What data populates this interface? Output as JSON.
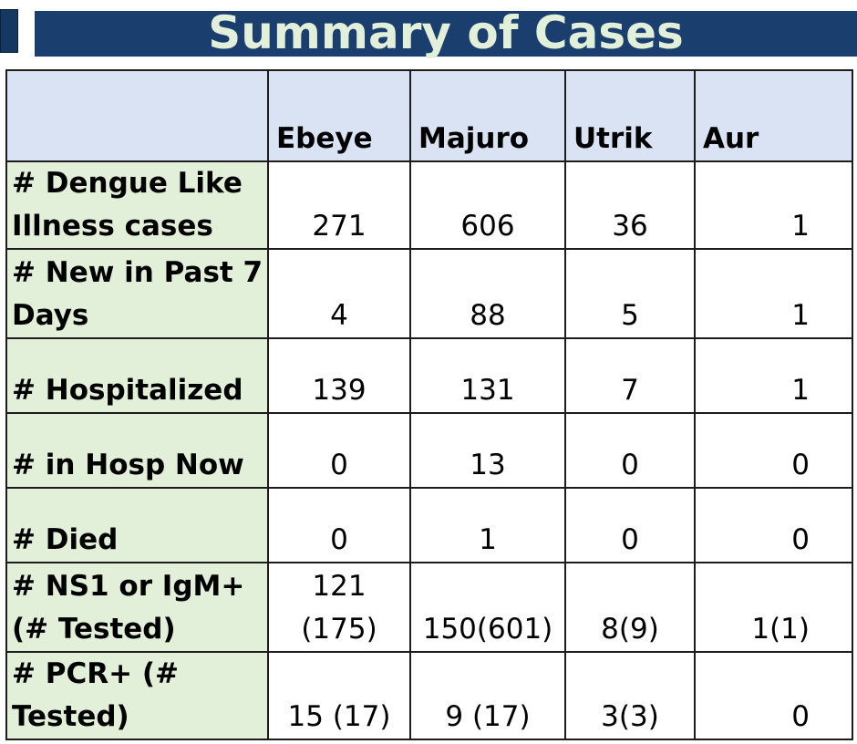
{
  "title": "Summary of Cases",
  "table": {
    "headers": [
      "",
      "Ebeye",
      "Majuro",
      "Utrik",
      "Aur"
    ],
    "rows": [
      {
        "label": "# Dengue Like Illness cases",
        "values": [
          "271",
          "606",
          "36",
          "1"
        ]
      },
      {
        "label": "# New in Past 7 Days",
        "values": [
          "4",
          "88",
          "5",
          "1"
        ]
      },
      {
        "label": "# Hospitalized",
        "values": [
          "139",
          "131",
          "7",
          "1"
        ]
      },
      {
        "label": "# in Hosp Now",
        "values": [
          "0",
          "13",
          "0",
          "0"
        ]
      },
      {
        "label": "# Died",
        "values": [
          "0",
          "1",
          "0",
          "0"
        ]
      },
      {
        "label": "# NS1 or IgM+ (# Tested)",
        "values": [
          "121 (175)",
          "150(601)",
          "8(9)",
          "1(1)"
        ]
      },
      {
        "label": "# PCR+ (# Tested)",
        "values": [
          "15 (17)",
          "9 (17)",
          "3(3)",
          "0"
        ]
      }
    ]
  },
  "colors": {
    "title_bar": "#1a3e6e",
    "title_text": "#e2efd9",
    "header_bg": "#dae3f3",
    "label_bg": "#e2efd9"
  }
}
